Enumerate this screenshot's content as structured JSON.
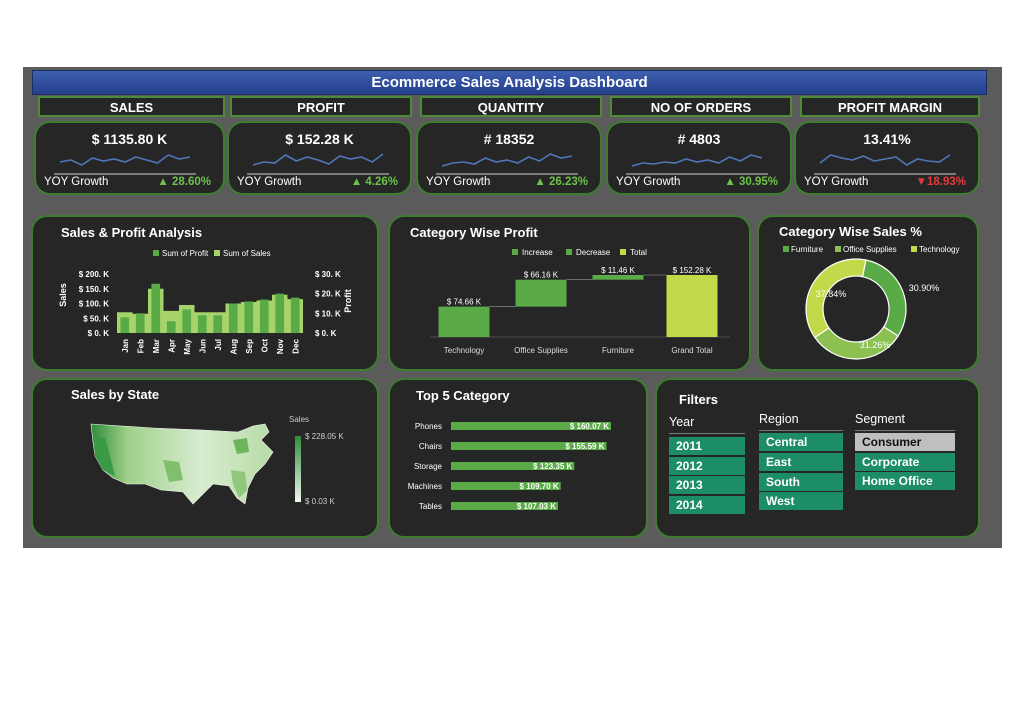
{
  "title": "Ecommerce Sales Analysis Dashboard",
  "kpis": [
    {
      "label": "SALES",
      "value": "$ 1135.80 K",
      "yoy_label": "YOY Growth",
      "yoy": "▲ 28.60%",
      "dir": "up",
      "spark": [
        0.55,
        0.45,
        0.7,
        0.35,
        0.5,
        0.4,
        0.55,
        0.3,
        0.45,
        0.6,
        0.2,
        0.4,
        0.3
      ]
    },
    {
      "label": "PROFIT",
      "value": "$ 152.28 K",
      "yoy_label": "YOY Growth",
      "yoy": "▲ 4.26%",
      "dir": "up",
      "spark": [
        0.7,
        0.55,
        0.6,
        0.2,
        0.5,
        0.3,
        0.45,
        0.65,
        0.25,
        0.4,
        0.3,
        0.55,
        0.15
      ]
    },
    {
      "label": "QUANTITY",
      "value": "# 18352",
      "yoy_label": "YOY Growth",
      "yoy": "▲ 26.23%",
      "dir": "up",
      "spark": [
        0.75,
        0.6,
        0.55,
        0.65,
        0.35,
        0.55,
        0.45,
        0.6,
        0.3,
        0.5,
        0.15,
        0.35,
        0.25
      ]
    },
    {
      "label": "NO OF ORDERS",
      "value": "# 4803",
      "yoy_label": "YOY Growth",
      "yoy": "▲ 30.95%",
      "dir": "up",
      "spark": [
        0.75,
        0.6,
        0.65,
        0.55,
        0.6,
        0.4,
        0.55,
        0.45,
        0.6,
        0.3,
        0.5,
        0.2,
        0.35
      ]
    },
    {
      "label": "PROFIT MARGIN",
      "value": "13.41%",
      "yoy_label": "YOY Growth",
      "yoy": "▼18.93%",
      "dir": "down",
      "spark": [
        0.6,
        0.2,
        0.35,
        0.45,
        0.25,
        0.5,
        0.4,
        0.3,
        0.7,
        0.4,
        0.5,
        0.55,
        0.2
      ]
    }
  ],
  "sales_profit": {
    "title": "Sales & Profit Analysis",
    "legend": [
      "Sum of Profit",
      "Sum of Sales"
    ],
    "left_ticks": [
      "$ 200. K",
      "$ 150. K",
      "$ 100. K",
      "$ 50. K",
      "$ 0. K"
    ],
    "right_ticks": [
      "$ 30. K",
      "$ 20. K",
      "$ 10. K",
      "$ 0. K"
    ],
    "ylabel_left": "Sales",
    "ylabel_right": "Profit"
  },
  "waterfall": {
    "title": "Category Wise Profit",
    "legend": [
      "Increase",
      "Decrease",
      "Total"
    ]
  },
  "donut": {
    "title": "Category Wise Sales %",
    "legend": [
      "Furniture",
      "Office Supplies",
      "Technology"
    ]
  },
  "map": {
    "title": "Sales by State",
    "legend_title": "Sales",
    "legend_max": "$ 228.05 K",
    "legend_min": "$ 0.03 K"
  },
  "top5": {
    "title": "Top 5 Category"
  },
  "filters": {
    "title": "Filters",
    "year": {
      "label": "Year",
      "options": [
        "2011",
        "2012",
        "2013",
        "2014"
      ]
    },
    "region": {
      "label": "Region",
      "options": [
        "Central",
        "East",
        "South",
        "West"
      ]
    },
    "segment": {
      "label": "Segment",
      "options": [
        "Consumer",
        "Corporate",
        "Home Office"
      ],
      "selected": "Consumer"
    }
  },
  "colors": {
    "bg": "#5b5b5b",
    "card": "#262626",
    "border": "#3e7d30",
    "bar": "#5aab47",
    "barLight": "#a6d36a",
    "total": "#c3d94a",
    "filter": "#1d8c68",
    "spark": "#4f76b8"
  },
  "chart_data": [
    {
      "type": "bar",
      "title": "Sales & Profit Analysis",
      "categories": [
        "Jan",
        "Feb",
        "Mar",
        "Apr",
        "May",
        "Jun",
        "Jul",
        "Aug",
        "Sep",
        "Oct",
        "Nov",
        "Dec"
      ],
      "series": [
        {
          "name": "Sum of Sales",
          "values": [
            70,
            65,
            150,
            75,
            95,
            70,
            70,
            100,
            105,
            110,
            130,
            115
          ]
        },
        {
          "name": "Sum of Profit",
          "values": [
            8,
            10,
            25,
            6,
            12,
            9,
            9,
            15,
            16,
            17,
            20,
            18
          ]
        }
      ],
      "ylim": [
        0,
        200
      ],
      "y2lim": [
        0,
        30
      ],
      "ylabel": "Sales",
      "y2label": "Profit"
    },
    {
      "type": "bar",
      "subtype": "waterfall",
      "title": "Category Wise Profit",
      "categories": [
        "Technology",
        "Office Supplies",
        "Furniture",
        "Grand Total"
      ],
      "values": [
        74.66,
        66.16,
        11.46,
        152.28
      ],
      "labels": [
        "$ 74.66 K",
        "$ 66.16 K",
        "$ 11.46 K",
        "$ 152.28 K"
      ]
    },
    {
      "type": "pie",
      "title": "Category Wise Sales %",
      "categories": [
        "Furniture",
        "Office Supplies",
        "Technology"
      ],
      "values": [
        30.9,
        31.26,
        37.84
      ],
      "labels": [
        "30.90%",
        "31.26%",
        "37.84%"
      ]
    },
    {
      "type": "bar",
      "title": "Top 5 Category",
      "categories": [
        "Phones",
        "Chairs",
        "Storage",
        "Machines",
        "Tables"
      ],
      "values": [
        160.07,
        155.59,
        123.35,
        109.7,
        107.03
      ],
      "labels": [
        "$ 160.07 K",
        "$ 155.59 K",
        "$ 123.35 K",
        "$ 109.70 K",
        "$ 107.03 K"
      ]
    }
  ]
}
